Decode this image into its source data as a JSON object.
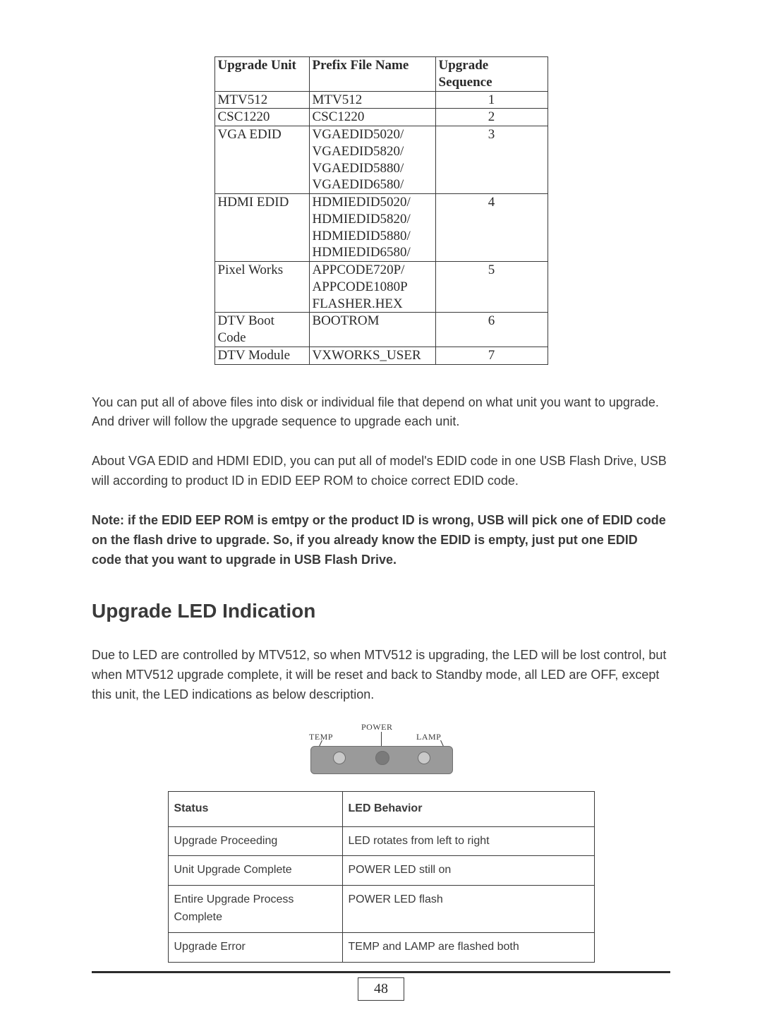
{
  "upgrade_table": {
    "headers": {
      "unit": "Upgrade Unit",
      "prefix": "Prefix File Name",
      "seq": "Upgrade Sequence"
    },
    "rows": [
      {
        "unit": "MTV512",
        "prefix": "MTV512",
        "seq": "1"
      },
      {
        "unit": "CSC1220",
        "prefix": "CSC1220",
        "seq": "2"
      },
      {
        "unit": "VGA EDID",
        "prefix": "VGAEDID5020/\nVGAEDID5820/\nVGAEDID5880/\nVGAEDID6580/",
        "seq": "3"
      },
      {
        "unit": "HDMI EDID",
        "prefix": "HDMIEDID5020/\nHDMIEDID5820/\nHDMIEDID5880/\nHDMIEDID6580/",
        "seq": "4"
      },
      {
        "unit": "Pixel Works",
        "prefix": "APPCODE720P/\nAPPCODE1080P\nFLASHER.HEX",
        "seq": "5"
      },
      {
        "unit": "DTV Boot Code",
        "prefix": "BOOTROM",
        "seq": "6"
      },
      {
        "unit": "DTV Module",
        "prefix": "VXWORKS_USER",
        "seq": "7"
      }
    ]
  },
  "paragraphs": {
    "p1": "You can put all of above files into disk or individual file that depend on what unit you want to upgrade. And driver will follow the upgrade sequence to upgrade each unit.",
    "p2": "About VGA EDID and HDMI EDID, you can put all of model's EDID code in one USB Flash Drive, USB will according to product ID in EDID EEP ROM to choice correct EDID code.",
    "note": "Note:  if the EDID EEP ROM is emtpy or the product ID is wrong, USB will pick one of EDID code on the flash drive to upgrade. So, if you already know the EDID is empty, just put one EDID code that you want to upgrade in USB Flash Drive."
  },
  "section_title": "Upgrade LED Indication",
  "led_section_intro": "Due to LED are controlled by MTV512, so when MTV512 is upgrading, the LED will be lost control, but when MTV512 upgrade complete, it will be reset and back to Standby mode, all LED are OFF, except this unit, the LED indications as below description.",
  "led_labels": {
    "temp": "TEMP",
    "power": "POWER",
    "lamp": "LAMP"
  },
  "behavior_table": {
    "headers": {
      "status": "Status",
      "behavior": "LED Behavior"
    },
    "rows": [
      {
        "status": "Upgrade Proceeding",
        "behavior": "LED rotates from left to right"
      },
      {
        "status": "Unit Upgrade Complete",
        "behavior": "POWER LED still on"
      },
      {
        "status": "Entire Upgrade Process Complete",
        "behavior": "POWER LED flash"
      },
      {
        "status": "Upgrade Error",
        "behavior": "TEMP and LAMP are flashed both"
      }
    ]
  },
  "page_number": "48",
  "colors": {
    "text": "#3a3a3a",
    "border": "#3a3a3a",
    "panel_bg": "#9a9a9a",
    "panel_border": "#6f6f6f",
    "led_light": "#c9c9c9",
    "led_dark": "#7a7a7a",
    "rule": "#2b2b2b",
    "page_bg": "#ffffff"
  }
}
